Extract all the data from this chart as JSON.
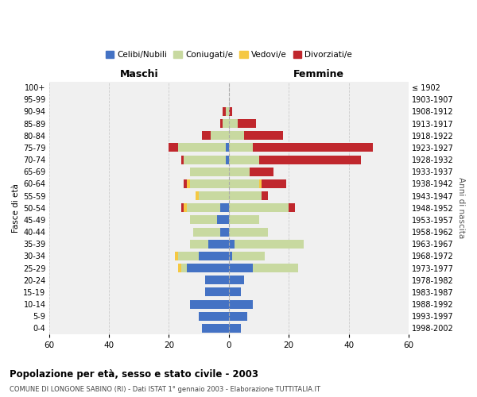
{
  "age_groups": [
    "0-4",
    "5-9",
    "10-14",
    "15-19",
    "20-24",
    "25-29",
    "30-34",
    "35-39",
    "40-44",
    "45-49",
    "50-54",
    "55-59",
    "60-64",
    "65-69",
    "70-74",
    "75-79",
    "80-84",
    "85-89",
    "90-94",
    "95-99",
    "100+"
  ],
  "birth_years": [
    "1998-2002",
    "1993-1997",
    "1988-1992",
    "1983-1987",
    "1978-1982",
    "1973-1977",
    "1968-1972",
    "1963-1967",
    "1958-1962",
    "1953-1957",
    "1948-1952",
    "1943-1947",
    "1938-1942",
    "1933-1937",
    "1928-1932",
    "1923-1927",
    "1918-1922",
    "1913-1917",
    "1908-1912",
    "1903-1907",
    "≤ 1902"
  ],
  "maschi": {
    "celibi": [
      9,
      10,
      13,
      8,
      8,
      14,
      10,
      7,
      3,
      4,
      3,
      0,
      0,
      0,
      1,
      1,
      0,
      0,
      0,
      0,
      0
    ],
    "coniugati": [
      0,
      0,
      0,
      0,
      0,
      2,
      7,
      6,
      9,
      9,
      11,
      10,
      13,
      13,
      14,
      16,
      6,
      2,
      1,
      0,
      0
    ],
    "vedovi": [
      0,
      0,
      0,
      0,
      0,
      1,
      1,
      0,
      0,
      0,
      1,
      1,
      1,
      0,
      0,
      0,
      0,
      0,
      0,
      0,
      0
    ],
    "divorziati": [
      0,
      0,
      0,
      0,
      0,
      0,
      0,
      0,
      0,
      0,
      1,
      0,
      1,
      0,
      1,
      3,
      3,
      1,
      1,
      0,
      0
    ]
  },
  "femmine": {
    "nubili": [
      4,
      6,
      8,
      4,
      5,
      8,
      1,
      2,
      0,
      0,
      0,
      0,
      0,
      0,
      0,
      0,
      0,
      0,
      0,
      0,
      0
    ],
    "coniugate": [
      0,
      0,
      0,
      0,
      0,
      15,
      11,
      23,
      13,
      10,
      20,
      11,
      10,
      7,
      10,
      8,
      5,
      3,
      0,
      0,
      0
    ],
    "vedove": [
      0,
      0,
      0,
      0,
      0,
      0,
      0,
      0,
      0,
      0,
      0,
      0,
      1,
      0,
      0,
      0,
      0,
      0,
      0,
      0,
      0
    ],
    "divorziate": [
      0,
      0,
      0,
      0,
      0,
      0,
      0,
      0,
      0,
      0,
      2,
      2,
      8,
      8,
      34,
      40,
      13,
      6,
      1,
      0,
      0
    ]
  },
  "colors": {
    "celibi_nubili": "#4472c4",
    "coniugati": "#c8d9a0",
    "vedovi": "#f5c842",
    "divorziati": "#c0272d"
  },
  "xlim": 60,
  "title": "Popolazione per età, sesso e stato civile - 2003",
  "subtitle": "COMUNE DI LONGONE SABINO (RI) - Dati ISTAT 1° gennaio 2003 - Elaborazione TUTTITALIA.IT",
  "ylabel_left": "Fasce di età",
  "ylabel_right": "Anni di nascita",
  "header_left": "Maschi",
  "header_right": "Femmine",
  "bg_color": "#f0f0f0",
  "grid_color": "#cccccc"
}
